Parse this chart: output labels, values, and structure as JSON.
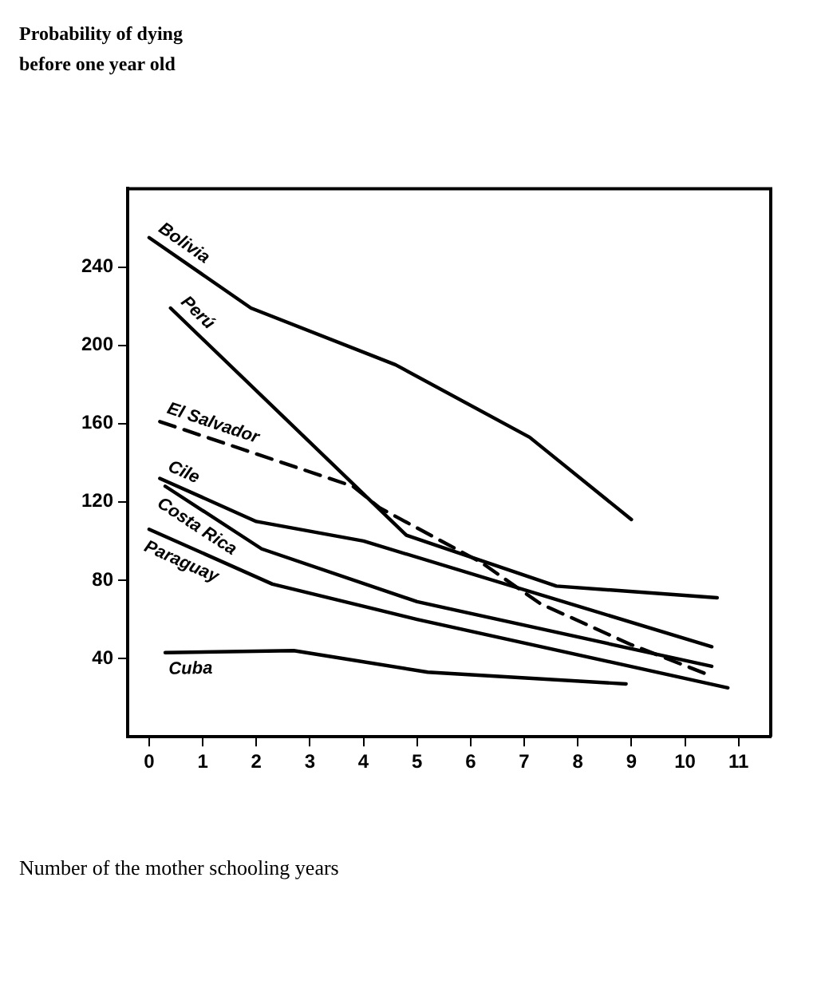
{
  "chart_data": {
    "type": "line",
    "title": "Probability of dying before one year old",
    "xlabel": "Number of the mother schooling years",
    "xlim": [
      -0.4,
      11.6
    ],
    "xticks": [
      0,
      1,
      2,
      3,
      4,
      5,
      6,
      7,
      8,
      9,
      10,
      11
    ],
    "ylim": [
      0,
      280
    ],
    "yticks": [
      40,
      80,
      120,
      160,
      200,
      240
    ],
    "grid": false,
    "legend": false,
    "marker": "none",
    "line_style": "solid",
    "series": [
      {
        "name": "Bolivia",
        "color": "#000000",
        "x": [
          0,
          1.9,
          4.6,
          7.1,
          9
        ],
        "values": [
          255,
          219,
          190,
          153,
          111
        ]
      },
      {
        "name": "Perú",
        "color": "#000000",
        "x": [
          0.4,
          4.8,
          7.6,
          10.6
        ],
        "values": [
          219,
          103,
          77,
          71
        ]
      },
      {
        "name": "El Salvador",
        "color": "#000000",
        "line_style": "dashed",
        "x": [
          0.2,
          3.8,
          4.3,
          6.2,
          7.3,
          9,
          10.5
        ],
        "values": [
          161,
          128,
          117,
          89,
          68,
          47,
          31
        ]
      },
      {
        "name": "Cile",
        "color": "#000000",
        "x": [
          0.2,
          2,
          4,
          10.5
        ],
        "values": [
          132,
          110,
          100,
          46
        ]
      },
      {
        "name": "Costa Rica",
        "color": "#000000",
        "x": [
          0.3,
          2.1,
          5,
          10.5
        ],
        "values": [
          128,
          96,
          69,
          36
        ]
      },
      {
        "name": "Paraguay",
        "color": "#000000",
        "x": [
          0,
          2.3,
          5,
          10.8
        ],
        "values": [
          106,
          78,
          60,
          25
        ]
      },
      {
        "name": "Cuba",
        "color": "#000000",
        "x": [
          0.3,
          2.7,
          5.2,
          8.9
        ],
        "values": [
          43,
          44,
          33,
          27
        ]
      }
    ]
  }
}
